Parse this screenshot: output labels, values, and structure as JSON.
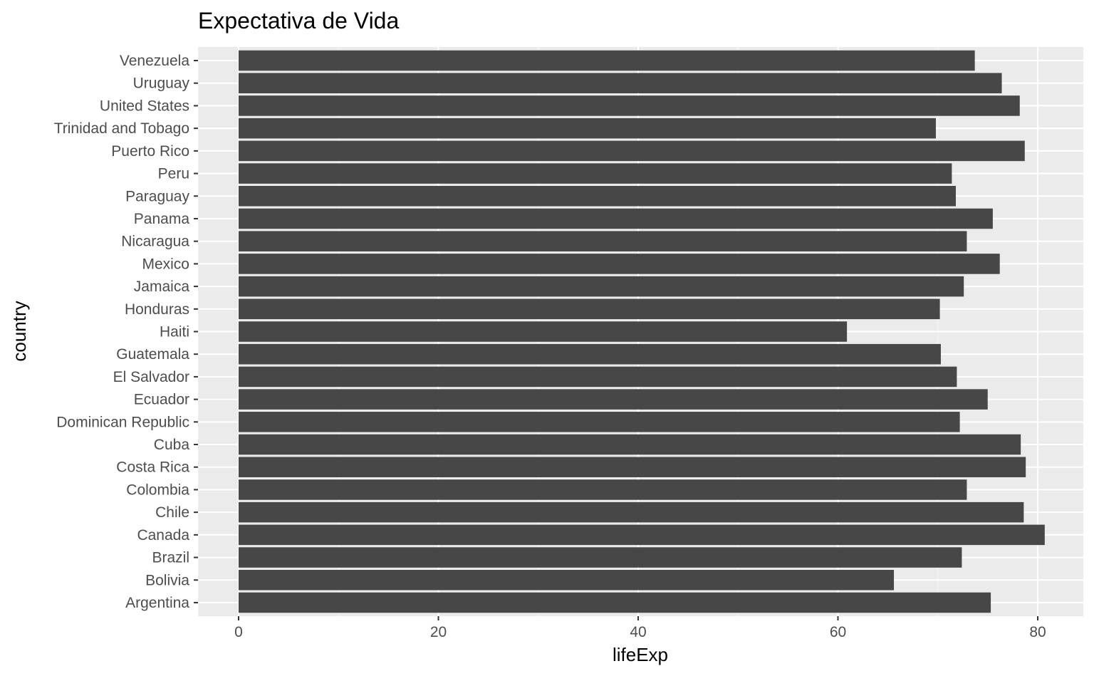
{
  "chart_data": {
    "type": "bar",
    "orientation": "horizontal",
    "title": "Expectativa de Vida",
    "xlabel": "lifeExp",
    "ylabel": "country",
    "xlim": [
      0,
      85
    ],
    "xticks": [
      0,
      20,
      40,
      60,
      80
    ],
    "grid": true,
    "colors": {
      "bar": "#474747",
      "panel_background": "#ebebeb",
      "grid": "#ffffff"
    },
    "categories": [
      "Argentina",
      "Bolivia",
      "Brazil",
      "Canada",
      "Chile",
      "Colombia",
      "Costa Rica",
      "Cuba",
      "Dominican Republic",
      "Ecuador",
      "El Salvador",
      "Guatemala",
      "Haiti",
      "Honduras",
      "Jamaica",
      "Mexico",
      "Nicaragua",
      "Panama",
      "Paraguay",
      "Peru",
      "Puerto Rico",
      "Trinidad and Tobago",
      "United States",
      "Uruguay",
      "Venezuela"
    ],
    "values": [
      75.3,
      65.6,
      72.4,
      80.7,
      78.6,
      72.9,
      78.8,
      78.3,
      72.2,
      74.99,
      71.9,
      70.3,
      60.9,
      70.2,
      72.6,
      76.2,
      72.9,
      75.5,
      71.8,
      71.4,
      78.7,
      69.8,
      78.2,
      76.4,
      73.7
    ]
  }
}
